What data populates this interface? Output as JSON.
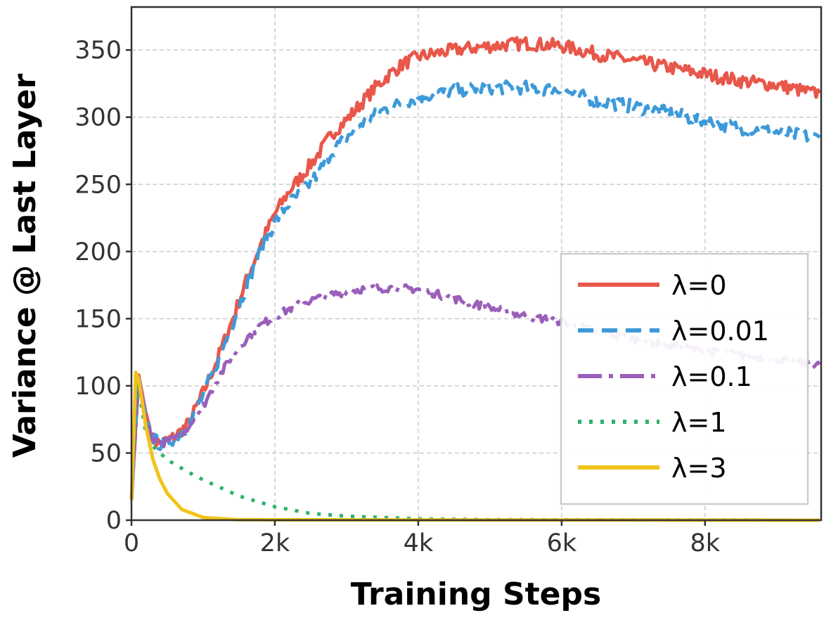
{
  "chart_data": {
    "type": "line",
    "title": "",
    "xlabel": "Training Steps",
    "ylabel": "Variance @ Last Layer",
    "xlim": [
      0,
      9620
    ],
    "ylim": [
      0,
      382
    ],
    "grid": true,
    "legend_position": "center-right",
    "xticks": [
      {
        "v": 0,
        "label": "0"
      },
      {
        "v": 2000,
        "label": "2k"
      },
      {
        "v": 4000,
        "label": "4k"
      },
      {
        "v": 6000,
        "label": "6k"
      },
      {
        "v": 8000,
        "label": "8k"
      }
    ],
    "yticks": [
      {
        "v": 0,
        "label": "0"
      },
      {
        "v": 50,
        "label": "50"
      },
      {
        "v": 100,
        "label": "100"
      },
      {
        "v": 150,
        "label": "150"
      },
      {
        "v": 200,
        "label": "200"
      },
      {
        "v": 250,
        "label": "250"
      },
      {
        "v": 300,
        "label": "300"
      },
      {
        "v": 350,
        "label": "350"
      }
    ],
    "series": [
      {
        "name": "λ=0",
        "color": "#e8574a",
        "dash": "",
        "noise": 5,
        "points": [
          [
            0,
            15
          ],
          [
            100,
            108
          ],
          [
            200,
            80
          ],
          [
            300,
            60
          ],
          [
            400,
            57
          ],
          [
            600,
            62
          ],
          [
            800,
            72
          ],
          [
            1000,
            95
          ],
          [
            1200,
            120
          ],
          [
            1400,
            148
          ],
          [
            1600,
            178
          ],
          [
            1800,
            205
          ],
          [
            2000,
            228
          ],
          [
            2200,
            245
          ],
          [
            2400,
            258
          ],
          [
            2600,
            272
          ],
          [
            2800,
            288
          ],
          [
            3000,
            298
          ],
          [
            3200,
            310
          ],
          [
            3400,
            322
          ],
          [
            3600,
            332
          ],
          [
            3800,
            340
          ],
          [
            4000,
            345
          ],
          [
            4500,
            350
          ],
          [
            5000,
            353
          ],
          [
            5500,
            355
          ],
          [
            6000,
            353
          ],
          [
            6500,
            347
          ],
          [
            7000,
            342
          ],
          [
            7500,
            337
          ],
          [
            8000,
            332
          ],
          [
            8500,
            327
          ],
          [
            9000,
            324
          ],
          [
            9500,
            318
          ],
          [
            9600,
            318
          ]
        ]
      },
      {
        "name": "λ=0.01",
        "color": "#3d9ad9",
        "dash": "22,12",
        "noise": 5,
        "points": [
          [
            0,
            15
          ],
          [
            100,
            106
          ],
          [
            200,
            78
          ],
          [
            300,
            60
          ],
          [
            400,
            57
          ],
          [
            600,
            61
          ],
          [
            800,
            71
          ],
          [
            1000,
            93
          ],
          [
            1200,
            118
          ],
          [
            1400,
            145
          ],
          [
            1600,
            174
          ],
          [
            1800,
            200
          ],
          [
            2000,
            222
          ],
          [
            2200,
            236
          ],
          [
            2400,
            245
          ],
          [
            2600,
            258
          ],
          [
            2800,
            275
          ],
          [
            3000,
            285
          ],
          [
            3200,
            295
          ],
          [
            3500,
            305
          ],
          [
            4000,
            315
          ],
          [
            4500,
            320
          ],
          [
            5000,
            322
          ],
          [
            5500,
            322
          ],
          [
            6000,
            320
          ],
          [
            6500,
            312
          ],
          [
            7000,
            308
          ],
          [
            7500,
            303
          ],
          [
            8000,
            297
          ],
          [
            8500,
            292
          ],
          [
            9000,
            289
          ],
          [
            9500,
            285
          ],
          [
            9600,
            285
          ]
        ]
      },
      {
        "name": "λ=0.1",
        "color": "#9b5fba",
        "dash": "34,10,6,10",
        "noise": 3,
        "points": [
          [
            0,
            15
          ],
          [
            100,
            105
          ],
          [
            200,
            75
          ],
          [
            300,
            60
          ],
          [
            400,
            57
          ],
          [
            600,
            60
          ],
          [
            800,
            70
          ],
          [
            1000,
            85
          ],
          [
            1200,
            105
          ],
          [
            1400,
            122
          ],
          [
            1600,
            135
          ],
          [
            1800,
            145
          ],
          [
            2000,
            152
          ],
          [
            2400,
            162
          ],
          [
            2800,
            168
          ],
          [
            3200,
            172
          ],
          [
            3600,
            173
          ],
          [
            4000,
            172
          ],
          [
            4500,
            165
          ],
          [
            5000,
            158
          ],
          [
            5500,
            152
          ],
          [
            6000,
            148
          ],
          [
            6500,
            140
          ],
          [
            7000,
            135
          ],
          [
            7500,
            130
          ],
          [
            8000,
            126
          ],
          [
            8500,
            123
          ],
          [
            9000,
            120
          ],
          [
            9500,
            116
          ],
          [
            9600,
            116
          ]
        ]
      },
      {
        "name": "λ=1",
        "color": "#2fb26a",
        "dash": "5,11",
        "noise": 0,
        "points": [
          [
            0,
            15
          ],
          [
            80,
            105
          ],
          [
            200,
            65
          ],
          [
            300,
            55
          ],
          [
            500,
            45
          ],
          [
            750,
            37
          ],
          [
            1000,
            30
          ],
          [
            1250,
            24
          ],
          [
            1500,
            18
          ],
          [
            1750,
            14
          ],
          [
            2000,
            10
          ],
          [
            2500,
            5
          ],
          [
            3000,
            3
          ],
          [
            4000,
            1
          ],
          [
            5000,
            0.4
          ],
          [
            9600,
            0
          ]
        ]
      },
      {
        "name": "λ=3",
        "color": "#f2c31b",
        "dash": "",
        "noise": 0,
        "points": [
          [
            0,
            15
          ],
          [
            60,
            110
          ],
          [
            100,
            105
          ],
          [
            150,
            88
          ],
          [
            200,
            70
          ],
          [
            300,
            45
          ],
          [
            400,
            30
          ],
          [
            500,
            20
          ],
          [
            700,
            8
          ],
          [
            1000,
            2
          ],
          [
            1500,
            0.3
          ],
          [
            9600,
            0
          ]
        ]
      }
    ]
  }
}
